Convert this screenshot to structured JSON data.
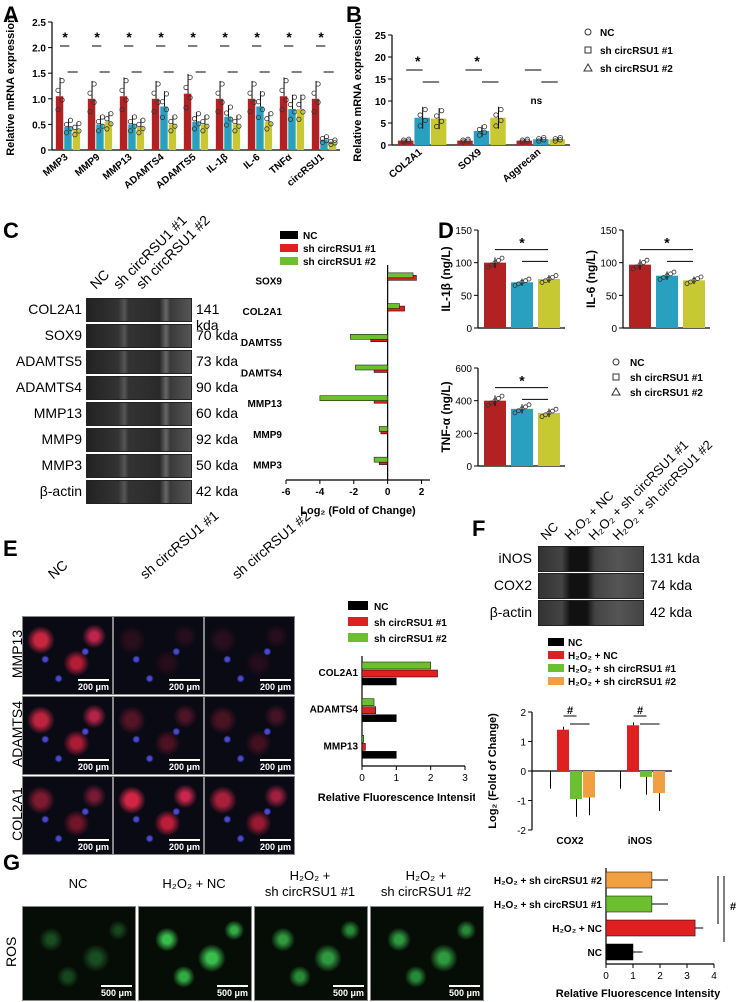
{
  "panels": {
    "A": "A",
    "B": "B",
    "C": "C",
    "D": "D",
    "E": "E",
    "F": "F",
    "G": "G"
  },
  "colors": {
    "nc": "#b22222",
    "sh1": "#2aa0c0",
    "sh2": "#c8c832",
    "black": "#000000",
    "red": "#e02020",
    "green": "#6cc030",
    "orange": "#f0a040"
  },
  "panelA": {
    "ylabel": "Relative mRNA expression",
    "categories": [
      "MMP3",
      "MMP9",
      "MMP13",
      "ADAMTS4",
      "ADAMTS5",
      "IL-1β",
      "IL-6",
      "TNFα",
      "circRSU1"
    ],
    "yticks": [
      "0",
      "0.5",
      "1.0",
      "1.5",
      "2.0",
      "2.5"
    ],
    "sig": "*"
  },
  "panelB": {
    "ylabel": "Relative mRNA expression",
    "categories": [
      "COL2A1",
      "SOX9",
      "Aggrecan"
    ],
    "yticks": [
      "0",
      "5",
      "10",
      "15",
      "20",
      "25"
    ],
    "sig": [
      "*",
      "*",
      "ns"
    ],
    "legend": [
      "NC",
      "sh circRSU1 #1",
      "sh circRSU1 #2"
    ]
  },
  "panelC": {
    "lanes": [
      "NC",
      "sh circRSU1 #1",
      "sh circRSU1 #2"
    ],
    "bands": [
      {
        "name": "COL2A1",
        "kda": "141 kda"
      },
      {
        "name": "SOX9",
        "kda": "70 kda"
      },
      {
        "name": "ADAMTS5",
        "kda": "73 kda"
      },
      {
        "name": "ADAMTS4",
        "kda": "90 kda"
      },
      {
        "name": "MMP13",
        "kda": "60 kda"
      },
      {
        "name": "MMP9",
        "kda": "92 kda"
      },
      {
        "name": "MMP3",
        "kda": "50 kda"
      },
      {
        "name": "β-actin",
        "kda": "42 kda"
      }
    ],
    "legend": [
      "NC",
      "sh circRSU1 #1",
      "sh circRSU1 #2"
    ],
    "xlabel": "Log₂ (Fold of Change)",
    "xticks": [
      "-6",
      "-4",
      "-2",
      "0",
      "2"
    ]
  },
  "panelD": {
    "il1b_ylabel": "IL-1β (ng/L)",
    "il6_ylabel": "IL-6 (ng/L)",
    "tnf_ylabel": "TNF-α (ng/L)",
    "yticks_small": [
      "0",
      "50",
      "100",
      "150"
    ],
    "yticks_tnf": [
      "0",
      "200",
      "400",
      "600"
    ],
    "legend": [
      "NC",
      "sh circRSU1 #1",
      "sh circRSU1 #2"
    ],
    "sig": "*"
  },
  "panelE": {
    "cols": [
      "NC",
      "sh circRSU1 #1",
      "sh circRSU1 #2"
    ],
    "rows": [
      "MMP13",
      "ADAMTS4",
      "COL2A1"
    ],
    "scale": "200 μm",
    "legend": [
      "NC",
      "sh circRSU1 #1",
      "sh circRSU1 #2"
    ],
    "xlabel": "Relative Fluorescence Intensity",
    "xticks": [
      "0",
      "1",
      "2",
      "3"
    ]
  },
  "panelF": {
    "lanes": [
      "NC",
      "H₂O₂ + NC",
      "H₂O₂ + sh circRSU1 #1",
      "H₂O₂ + sh circRSU1 #2"
    ],
    "bands": [
      {
        "name": "iNOS",
        "kda": "131 kda"
      },
      {
        "name": "COX2",
        "kda": "74 kda"
      },
      {
        "name": "β-actin",
        "kda": "42 kda"
      }
    ],
    "legend": [
      "NC",
      "H₂O₂ + NC",
      "H₂O₂ + sh circRSU1 #1",
      "H₂O₂ + sh circRSU1 #2"
    ],
    "ylabel": "Log₂ (Fold of Change)",
    "yticks": [
      "-2",
      "-1",
      "0",
      "1",
      "2"
    ],
    "sig": "#"
  },
  "panelG": {
    "cols": [
      "NC",
      "H₂O₂ + NC",
      "H₂O₂ +",
      "H₂O₂ +"
    ],
    "cols_sub": [
      "",
      "",
      "sh circRSU1 #1",
      "sh circRSU1 #2"
    ],
    "row": "ROS",
    "scale": "500 μm",
    "xlabel": "Relative Fluorescence Intensity",
    "xticks": [
      "0",
      "1",
      "2",
      "3",
      "4"
    ],
    "sig": "#"
  },
  "chart_data": [
    {
      "type": "bar",
      "panel": "A",
      "categories": [
        "MMP3",
        "MMP9",
        "MMP13",
        "ADAMTS4",
        "ADAMTS5",
        "IL-1β",
        "IL-6",
        "TNFα",
        "circRSU1"
      ],
      "ylabel": "Relative mRNA expression",
      "ylim": [
        0,
        2.5
      ],
      "series": [
        {
          "name": "NC",
          "values": [
            1.05,
            1.0,
            1.05,
            1.0,
            1.1,
            1.0,
            1.0,
            1.05,
            1.0
          ]
        },
        {
          "name": "sh circRSU1 #1",
          "values": [
            0.45,
            0.5,
            0.5,
            0.85,
            0.55,
            0.65,
            0.85,
            0.8,
            0.2
          ]
        },
        {
          "name": "sh circRSU1 #2",
          "values": [
            0.4,
            0.55,
            0.45,
            0.5,
            0.5,
            0.5,
            0.55,
            0.8,
            0.15
          ]
        }
      ]
    },
    {
      "type": "bar",
      "panel": "B",
      "categories": [
        "COL2A1",
        "SOX9",
        "Aggrecan"
      ],
      "ylabel": "Relative mRNA expression",
      "ylim": [
        0,
        25
      ],
      "series": [
        {
          "name": "NC",
          "values": [
            1.0,
            1.0,
            1.0
          ]
        },
        {
          "name": "sh circRSU1 #1",
          "values": [
            6.2,
            3.2,
            1.3
          ]
        },
        {
          "name": "sh circRSU1 #2",
          "values": [
            6.0,
            6.2,
            1.3
          ]
        }
      ]
    },
    {
      "type": "bar",
      "panel": "C",
      "orientation": "horizontal",
      "categories": [
        "SOX9",
        "COL2A1",
        "ADAMTS5",
        "ADAMTS4",
        "MMP13",
        "MMP9",
        "MMP3"
      ],
      "xlabel": "Log₂ (Fold of Change)",
      "xlim": [
        -6,
        2.5
      ],
      "series": [
        {
          "name": "NC",
          "values": [
            0,
            0,
            0,
            0,
            0,
            0,
            0
          ]
        },
        {
          "name": "sh circRSU1 #1",
          "values": [
            1.7,
            1.0,
            -1.0,
            -0.8,
            -0.8,
            -0.4,
            -0.5
          ]
        },
        {
          "name": "sh circRSU1 #2",
          "values": [
            1.5,
            0.7,
            -2.2,
            -1.9,
            -4.0,
            -0.5,
            -0.8
          ]
        }
      ]
    },
    {
      "type": "bar",
      "panel": "D-IL-1β",
      "categories": [
        "NC",
        "sh circRSU1 #1",
        "sh circRSU1 #2"
      ],
      "ylabel": "IL-1β (ng/L)",
      "ylim": [
        0,
        150
      ],
      "values": [
        100,
        70,
        75
      ]
    },
    {
      "type": "bar",
      "panel": "D-IL-6",
      "categories": [
        "NC",
        "sh circRSU1 #1",
        "sh circRSU1 #2"
      ],
      "ylabel": "IL-6 (ng/L)",
      "ylim": [
        0,
        150
      ],
      "values": [
        97,
        80,
        73
      ]
    },
    {
      "type": "bar",
      "panel": "D-TNF-α",
      "categories": [
        "NC",
        "sh circRSU1 #1",
        "sh circRSU1 #2"
      ],
      "ylabel": "TNF-α (ng/L)",
      "ylim": [
        0,
        600
      ],
      "values": [
        400,
        350,
        325
      ]
    },
    {
      "type": "bar",
      "panel": "E",
      "orientation": "horizontal",
      "categories": [
        "COL2A1",
        "ADAMTS4",
        "MMP13"
      ],
      "xlabel": "Relative Fluorescence Intensity",
      "xlim": [
        0,
        3
      ],
      "series": [
        {
          "name": "NC",
          "values": [
            1.0,
            1.0,
            1.0
          ]
        },
        {
          "name": "sh circRSU1 #1",
          "values": [
            2.2,
            0.4,
            0.1
          ]
        },
        {
          "name": "sh circRSU1 #2",
          "values": [
            2.0,
            0.35,
            0.05
          ]
        }
      ]
    },
    {
      "type": "bar",
      "panel": "F",
      "categories": [
        "COX2",
        "iNOS"
      ],
      "ylabel": "Log₂ (Fold of Change)",
      "ylim": [
        -2,
        2
      ],
      "series": [
        {
          "name": "NC",
          "values": [
            0,
            0
          ]
        },
        {
          "name": "H₂O₂ + NC",
          "values": [
            1.4,
            1.55
          ]
        },
        {
          "name": "H₂O₂ + sh circRSU1 #1",
          "values": [
            -0.95,
            -0.2
          ]
        },
        {
          "name": "H₂O₂ + sh circRSU1 #2",
          "values": [
            -0.9,
            -0.75
          ]
        }
      ]
    },
    {
      "type": "bar",
      "panel": "G",
      "orientation": "horizontal",
      "categories": [
        "H₂O₂ + sh circRSU1 #2",
        "H₂O₂ + sh circRSU1 #1",
        "H₂O₂ + NC",
        "NC"
      ],
      "xlabel": "Relative Fluorescence Intensity",
      "xlim": [
        0,
        4
      ],
      "values": [
        1.7,
        1.7,
        3.3,
        1.0
      ]
    }
  ]
}
